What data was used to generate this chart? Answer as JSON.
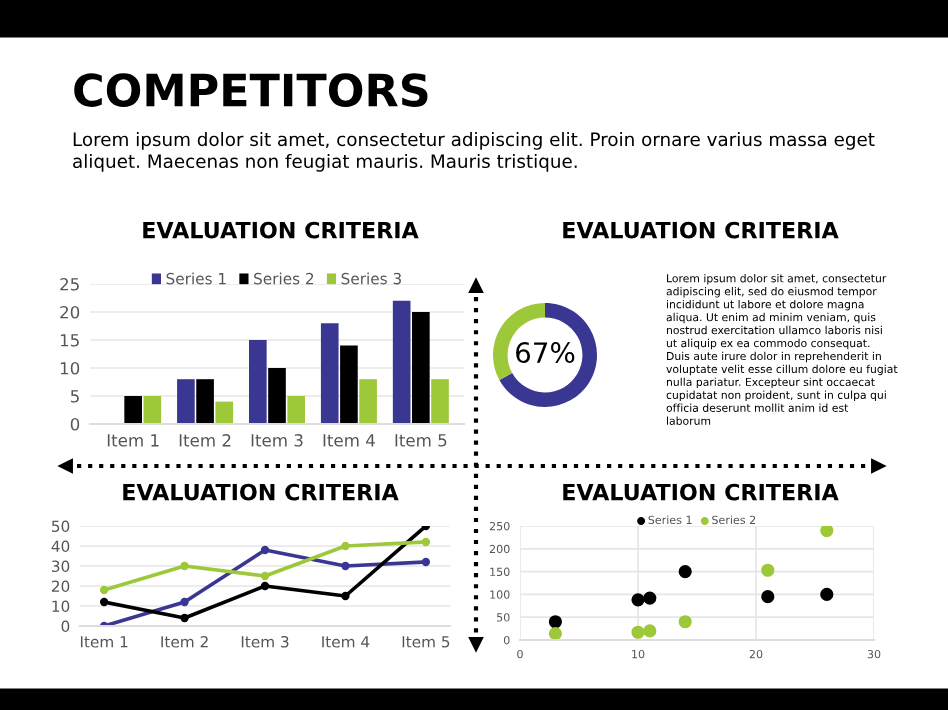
{
  "chart_data": [
    {
      "type": "other",
      "title": "COMPETITORS",
      "subtitle": "Lorem ipsum dolor sit amet, consectetur adipiscing elit. Proin ornare varius massa eget\naliquet. Maecenas non feugiat mauris. Mauris tristique."
    },
    {
      "type": "bar",
      "title": "EVALUATION CRITERIA",
      "categories": [
        "Item 1",
        "Item 2",
        "Item 3",
        "Item 4",
        "Item 5"
      ],
      "series": [
        {
          "name": "Series 1",
          "color": "#3a3793",
          "values": [
            0,
            8,
            15,
            18,
            22
          ]
        },
        {
          "name": "Series 2",
          "color": "#000000",
          "values": [
            5,
            8,
            10,
            14,
            20
          ]
        },
        {
          "name": "Series 3",
          "color": "#9dc83a",
          "values": [
            5,
            4,
            5,
            8,
            8
          ]
        }
      ],
      "ylim": [
        0,
        25
      ],
      "yticks": [
        0,
        5,
        10,
        15,
        20,
        25
      ],
      "grid": "y",
      "legend": "top"
    },
    {
      "type": "donut",
      "title": "EVALUATION CRITERIA",
      "categories": [
        null,
        null
      ],
      "values": [
        67,
        33
      ],
      "colors": [
        "#3a3793",
        "#9dc83a"
      ],
      "value_labels": [
        "67%",
        null
      ],
      "annotations": [
        "Lorem ipsum dolor sit amet, consectetur\nadipiscing elit, sed do eiusmod tempor\nincididunt ut labore et dolore magna\naliqua. Ut enim ad minim veniam, quis\nnostrud exercitation ullamco laboris nisi\nut aliquip ex ea commodo consequat.\nDuis aute irure dolor in reprehenderit in\nvoluptate velit esse cillum dolore eu fugiat\nnulla pariatur. Excepteur sint occaecat\ncupidatat non proident, sunt in culpa qui\nofficia deserunt mollit anim id est\nlaborum"
      ]
    },
    {
      "type": "line",
      "title": "EVALUATION CRITERIA",
      "categories": [
        "Item 1",
        "Item 2",
        "Item 3",
        "Item 4",
        "Item 5"
      ],
      "series": [
        {
          "color": "#3a3793",
          "values": [
            0,
            12,
            38,
            30,
            32
          ]
        },
        {
          "color": "#000000",
          "values": [
            12,
            4,
            20,
            15,
            50
          ]
        },
        {
          "color": "#9dc83a",
          "values": [
            18,
            30,
            25,
            40,
            42
          ]
        }
      ],
      "ylim": [
        0,
        50
      ],
      "yticks": [
        0,
        10,
        20,
        30,
        40,
        50
      ],
      "grid": "y",
      "marker": "circle",
      "line_style": "solid"
    },
    {
      "type": "scatter",
      "title": "EVALUATION CRITERIA",
      "series": [
        {
          "name": "Series 1",
          "color": "#000000",
          "x": [
            3,
            10,
            11,
            14,
            21,
            26
          ],
          "values": [
            40,
            88,
            92,
            150,
            95,
            100
          ]
        },
        {
          "name": "Series 2",
          "color": "#9dc83a",
          "x": [
            3,
            10,
            11,
            14,
            21,
            26
          ],
          "values": [
            14,
            17,
            20,
            40,
            153,
            240
          ]
        }
      ],
      "xlim": [
        0,
        30
      ],
      "xticks": [
        0,
        10,
        20,
        30
      ],
      "ylim": [
        0,
        250
      ],
      "yticks": [
        0,
        50,
        100,
        150,
        200,
        250
      ],
      "grid": true,
      "legend": "top",
      "marker": "circle"
    }
  ]
}
